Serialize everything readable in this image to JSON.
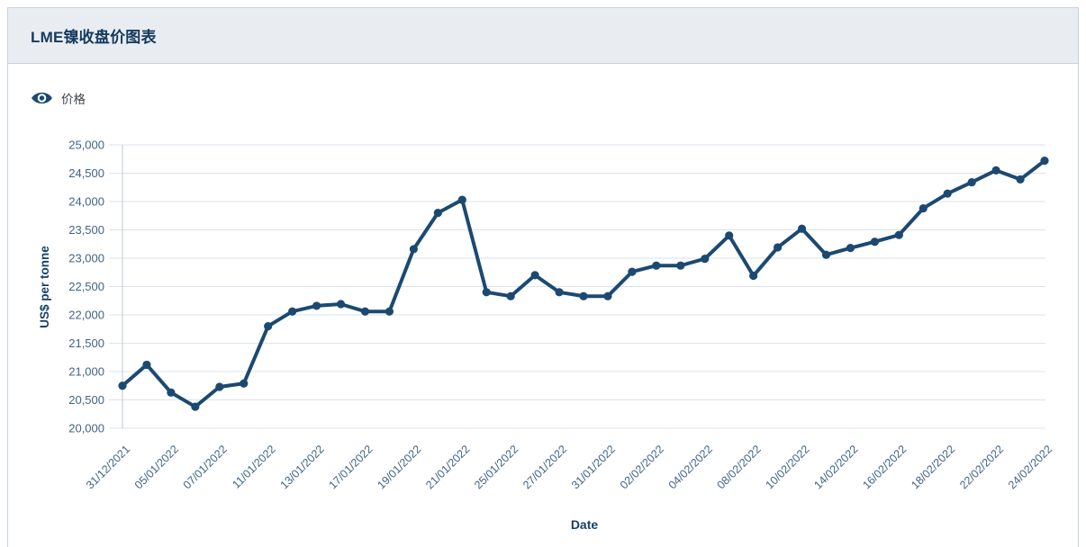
{
  "header": {
    "title": "LME镍收盘价图表"
  },
  "legend": {
    "label": "价格",
    "icon": "eye-icon"
  },
  "chart_data": {
    "type": "line",
    "title": "LME镍收盘价图表",
    "xlabel": "Date",
    "ylabel": "US$ per tonne",
    "ylim": [
      20000,
      25000
    ],
    "ytick_step": 500,
    "y_tick_labels": [
      "20,000",
      "20,500",
      "21,000",
      "21,500",
      "22,000",
      "22,500",
      "23,000",
      "23,500",
      "24,000",
      "24,500",
      "25,000"
    ],
    "grid": true,
    "legend_position": "top-left",
    "x_tick_every": 2,
    "x_tick_labels_shown": [
      "31/12/2021",
      "05/01/2022",
      "07/01/2022",
      "11/01/2022",
      "13/01/2022",
      "17/01/2022",
      "19/01/2022",
      "21/01/2022",
      "25/01/2022",
      "27/01/2022",
      "31/01/2022",
      "02/02/2022",
      "04/02/2022",
      "08/02/2022",
      "10/02/2022",
      "14/02/2022",
      "16/02/2022",
      "18/02/2022",
      "22/02/2022",
      "24/02/2022"
    ],
    "x": [
      "31/12/2021",
      "04/01/2022",
      "05/01/2022",
      "06/01/2022",
      "07/01/2022",
      "10/01/2022",
      "11/01/2022",
      "12/01/2022",
      "13/01/2022",
      "14/01/2022",
      "17/01/2022",
      "18/01/2022",
      "19/01/2022",
      "20/01/2022",
      "21/01/2022",
      "24/01/2022",
      "25/01/2022",
      "26/01/2022",
      "27/01/2022",
      "28/01/2022",
      "31/01/2022",
      "01/02/2022",
      "02/02/2022",
      "03/02/2022",
      "04/02/2022",
      "07/02/2022",
      "08/02/2022",
      "09/02/2022",
      "10/02/2022",
      "11/02/2022",
      "14/02/2022",
      "15/02/2022",
      "16/02/2022",
      "17/02/2022",
      "18/02/2022",
      "21/02/2022",
      "22/02/2022",
      "23/02/2022",
      "24/02/2022"
    ],
    "series": [
      {
        "name": "价格",
        "color": "#1b4971",
        "values": [
          20750,
          21120,
          20630,
          20380,
          20730,
          20790,
          21800,
          22060,
          22160,
          22190,
          22060,
          22060,
          23160,
          23800,
          24030,
          22400,
          22330,
          22700,
          22400,
          22330,
          22330,
          22760,
          22870,
          22870,
          22990,
          23400,
          22690,
          23190,
          23520,
          23060,
          23180,
          23290,
          23410,
          23880,
          24140,
          24340,
          24550,
          24390,
          24720
        ]
      }
    ]
  },
  "colors": {
    "line": "#1b4971",
    "grid": "#dbe3ec",
    "axis_line": "#c9d3dd",
    "tick_label": "#3f6486",
    "axis_title": "#17416b",
    "header_bg": "#e9edf2",
    "card_border": "#c8d2db",
    "title_text": "#143a5e",
    "legend_text": "#3f454a"
  }
}
